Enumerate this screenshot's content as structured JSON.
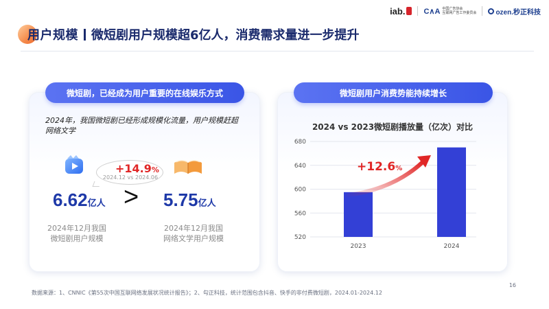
{
  "header": {
    "logo_iab": "iab.",
    "logo_cca_mark": "C∧A",
    "logo_cca_text_1": "中国广告协会",
    "logo_cca_text_2": "互联网广告工作委员会",
    "logo_ozen": "ozen.秒正科技"
  },
  "title": {
    "main": "用户规模",
    "sub": "微短剧用户规模超6亿人，消费需求量进一步提升"
  },
  "left_panel": {
    "pill": "微短剧，已经成为用户重要的在线娱乐方式",
    "lead": "2024年，我国微短剧已经形成规模化流量，用户规模赶超网络文学",
    "growth_value": "+14.9",
    "growth_unit": "%",
    "growth_note": "2024.12 vs 2024.06",
    "left_value": "6.62",
    "left_unit": "亿人",
    "compare_symbol": ">",
    "right_value": "5.75",
    "right_unit": "亿人",
    "left_caption_1": "2024年12月我国",
    "left_caption_2": "微短剧用户规模",
    "right_caption_1": "2024年12月我国",
    "right_caption_2": "网络文学用户规模",
    "icons": [
      "video-icon",
      "open-book-icon"
    ]
  },
  "right_panel": {
    "pill": "微短剧用户消费势能持续增长",
    "growth_label_value": "+12.6",
    "growth_label_unit": "%"
  },
  "chart_data": {
    "type": "bar",
    "title": "2024 vs 2023微短剧播放量（亿次）对比",
    "categories": [
      "2023",
      "2024"
    ],
    "values": [
      595,
      670
    ],
    "ylim": [
      520,
      680
    ],
    "yticks": [
      520,
      560,
      600,
      640,
      680
    ],
    "grid": true,
    "colors": {
      "bar": "#3340d6",
      "arrow": "#e02626"
    }
  },
  "footer": {
    "source": "数据来源：1、CNNIC《第55次中国互联网络发展状况统计报告》；2、勾正科技，统计范围包含抖音、快手的非付费微短剧，2024.01-2024.12",
    "page": "16"
  }
}
